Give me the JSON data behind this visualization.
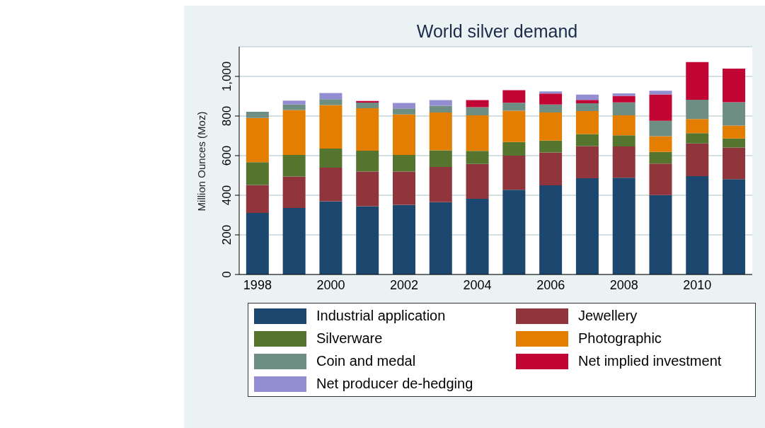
{
  "chart_data": {
    "type": "bar",
    "title": "World silver demand",
    "ylabel": "Million Ounces (Moz)",
    "stacked": true,
    "categories": [
      "1998",
      null,
      "2000",
      null,
      "2002",
      null,
      "2004",
      null,
      "2006",
      null,
      "2008",
      null,
      "2010",
      null
    ],
    "series": [
      {
        "name": "Industrial application",
        "color": "#1c486f",
        "values": [
          311,
          336,
          370,
          345,
          352,
          365,
          382,
          428,
          450,
          486,
          488,
          401,
          496,
          481
        ]
      },
      {
        "name": "Jewellery",
        "color": "#90353b",
        "values": [
          141,
          159,
          169,
          175,
          168,
          178,
          176,
          172,
          166,
          162,
          158,
          159,
          166,
          160
        ]
      },
      {
        "name": "Silverware",
        "color": "#55752f",
        "values": [
          115,
          109,
          97,
          105,
          84,
          84,
          66,
          69,
          60,
          61,
          57,
          59,
          51,
          46
        ]
      },
      {
        "name": "Photographic",
        "color": "#e37e00",
        "values": [
          223,
          226,
          219,
          214,
          204,
          191,
          180,
          158,
          142,
          116,
          101,
          79,
          72,
          65
        ]
      },
      {
        "name": "Coin and medal",
        "color": "#6e8e84",
        "values": [
          31,
          28,
          30,
          29,
          30,
          34,
          41,
          40,
          40,
          39,
          65,
          78,
          97,
          118
        ]
      },
      {
        "name": "Net implied investment",
        "color": "#c10534",
        "values": [
          0,
          0,
          0,
          8,
          0,
          0,
          35,
          63,
          55,
          17,
          33,
          133,
          190,
          169
        ]
      },
      {
        "name": "Net producer de-hedging",
        "color": "#938dd2",
        "values": [
          0,
          20,
          31,
          0,
          28,
          28,
          0,
          0,
          11,
          27,
          12,
          19,
          0,
          0
        ]
      }
    ],
    "ylim": [
      0,
      1150
    ],
    "yticks": [
      0,
      200,
      400,
      600,
      800,
      {
        "value": 1000,
        "label": "1,000"
      }
    ],
    "grid": "y",
    "legend": "bottom"
  }
}
